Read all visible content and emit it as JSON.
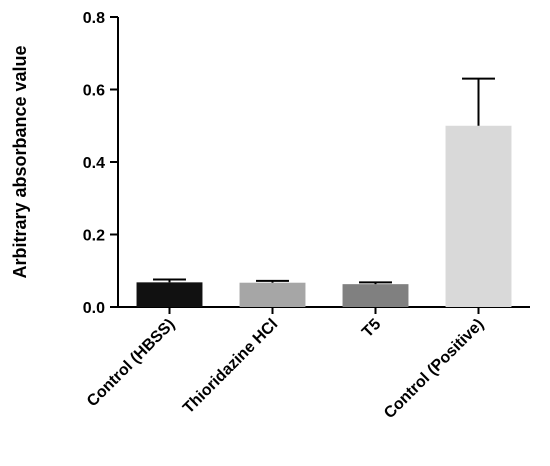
{
  "chart_data": {
    "type": "bar",
    "categories": [
      "Control (HBSS)",
      "Thioridazine HCl",
      "T5",
      "Control (Positive)"
    ],
    "values": [
      0.068,
      0.067,
      0.063,
      0.5
    ],
    "error_plus": [
      0.008,
      0.005,
      0.005,
      0.13
    ],
    "colors": [
      "#111111",
      "#a6a6a6",
      "#808080",
      "#d9d9d9"
    ],
    "title": "",
    "xlabel": "",
    "ylabel": "Arbitrary absorbance value",
    "ylim": [
      0,
      0.8
    ],
    "yticks": [
      "0.0",
      "0.2",
      "0.4",
      "0.6",
      "0.8"
    ],
    "grid": false,
    "legend": "none"
  }
}
